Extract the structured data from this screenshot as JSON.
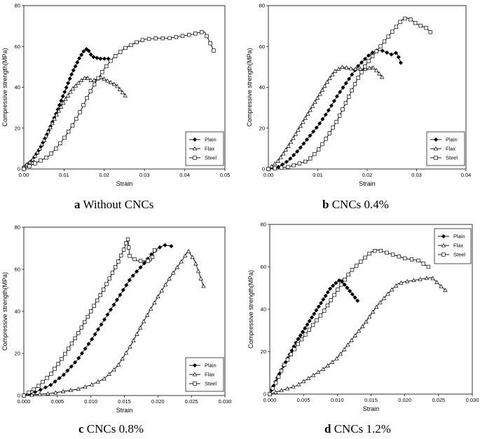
{
  "captions": [
    {
      "letter": "a",
      "text": "Without CNCs"
    },
    {
      "letter": "b",
      "text": "CNCs 0.4%"
    },
    {
      "letter": "c",
      "text": "CNCs 0.8%"
    },
    {
      "letter": "d",
      "text": "CNCs 1.2%"
    }
  ],
  "chart_data": [
    {
      "type": "line",
      "panel": "a",
      "xlabel": "Strain",
      "ylabel": "Compressive strength(MPa)",
      "xlim": [
        0,
        0.05
      ],
      "ylim": [
        0,
        80
      ],
      "xticks": [
        0,
        0.01,
        0.02,
        0.03,
        0.04,
        0.05
      ],
      "xtick_labels": [
        "0.00",
        "0.01",
        "0.02",
        "0.03",
        "0.04",
        "0.05"
      ],
      "yticks": [
        0,
        20,
        40,
        60,
        80
      ],
      "ytick_labels": [
        "0",
        "20",
        "40",
        "60",
        "80"
      ],
      "legend": [
        "Plain",
        "Flax",
        "Steel"
      ],
      "legend_position": "bottom-right",
      "series": [
        {
          "name": "Plain",
          "marker": "diamond",
          "x": [
            0,
            0.002,
            0.004,
            0.006,
            0.008,
            0.01,
            0.012,
            0.014,
            0.015,
            0.0158,
            0.017,
            0.019,
            0.021
          ],
          "y": [
            1,
            4,
            10,
            18,
            27,
            37,
            47,
            55,
            58,
            59,
            55,
            54,
            54
          ]
        },
        {
          "name": "Flax",
          "marker": "triangle",
          "x": [
            0,
            0.002,
            0.004,
            0.006,
            0.008,
            0.01,
            0.012,
            0.014,
            0.0155,
            0.017,
            0.019,
            0.021,
            0.023,
            0.0252
          ],
          "y": [
            1,
            4,
            10,
            18,
            26,
            33,
            39,
            43,
            45,
            43,
            45,
            43,
            41,
            36
          ]
        },
        {
          "name": "Steel",
          "marker": "square",
          "x": [
            0,
            0.002,
            0.004,
            0.006,
            0.008,
            0.01,
            0.012,
            0.014,
            0.016,
            0.018,
            0.02,
            0.022,
            0.025,
            0.028,
            0.03,
            0.033,
            0.036,
            0.039,
            0.042,
            0.044,
            0.045,
            0.046,
            0.0472
          ],
          "y": [
            0,
            2,
            4,
            6,
            10,
            15,
            21,
            28,
            36,
            43,
            49,
            54,
            59,
            62,
            63.5,
            64,
            64,
            65,
            66,
            67,
            67,
            63,
            58
          ]
        }
      ]
    },
    {
      "type": "line",
      "panel": "b",
      "xlabel": "Strain",
      "ylabel": "Compressive strength(MPa)",
      "xlim": [
        0,
        0.04
      ],
      "ylim": [
        0,
        80
      ],
      "xticks": [
        0,
        0.01,
        0.02,
        0.03,
        0.04
      ],
      "xtick_labels": [
        "0.00",
        "0.01",
        "0.02",
        "0.03",
        "0.04"
      ],
      "yticks": [
        0,
        20,
        40,
        60,
        80
      ],
      "ytick_labels": [
        "0",
        "20",
        "40",
        "60",
        "80"
      ],
      "legend": [
        "Plain",
        "Flax",
        "Steel"
      ],
      "legend_position": "bottom-right",
      "series": [
        {
          "name": "Plain",
          "marker": "diamond",
          "x": [
            0,
            0.002,
            0.004,
            0.006,
            0.008,
            0.01,
            0.012,
            0.014,
            0.016,
            0.018,
            0.02,
            0.021,
            0.022,
            0.023,
            0.024,
            0.025,
            0.026,
            0.0268
          ],
          "y": [
            0,
            1,
            4,
            9,
            15,
            21,
            28,
            36,
            43,
            50,
            55,
            57,
            58,
            58,
            57,
            56,
            57,
            52
          ]
        },
        {
          "name": "Flax",
          "marker": "triangle",
          "x": [
            0,
            0.002,
            0.004,
            0.006,
            0.008,
            0.01,
            0.012,
            0.0135,
            0.015,
            0.017,
            0.019,
            0.02,
            0.021,
            0.022,
            0.023
          ],
          "y": [
            0,
            4,
            11,
            19,
            27,
            35,
            43,
            48,
            50,
            49,
            49,
            49,
            50,
            48,
            45
          ]
        },
        {
          "name": "Steel",
          "marker": "square",
          "x": [
            0,
            0.004,
            0.008,
            0.01,
            0.012,
            0.014,
            0.016,
            0.018,
            0.02,
            0.022,
            0.024,
            0.026,
            0.027,
            0.028,
            0.029,
            0.03,
            0.031,
            0.032,
            0.0328
          ],
          "y": [
            0,
            1,
            4,
            9,
            16,
            24,
            34,
            44,
            52,
            58,
            64,
            70,
            73,
            74,
            73,
            71,
            70,
            69,
            67
          ]
        }
      ]
    },
    {
      "type": "line",
      "panel": "c",
      "xlabel": "Strain",
      "ylabel": "Compressive strength(MPa)",
      "xlim": [
        0,
        0.03
      ],
      "ylim": [
        0,
        80
      ],
      "xticks": [
        0,
        0.005,
        0.01,
        0.015,
        0.02,
        0.025,
        0.03
      ],
      "xtick_labels": [
        "0.000",
        "0.005",
        "0.010",
        "0.015",
        "0.020",
        "0.025",
        "0.030"
      ],
      "yticks": [
        0,
        20,
        40,
        60,
        80
      ],
      "ytick_labels": [
        "0",
        "20",
        "40",
        "60",
        "80"
      ],
      "legend": [
        "Plain",
        "Flax",
        "Steel"
      ],
      "legend_position": "bottom-right",
      "series": [
        {
          "name": "Plain",
          "marker": "diamond",
          "x": [
            0,
            0.002,
            0.004,
            0.006,
            0.008,
            0.01,
            0.012,
            0.014,
            0.016,
            0.018,
            0.019,
            0.02,
            0.021,
            0.022
          ],
          "y": [
            0,
            2,
            5,
            10,
            17,
            26,
            36,
            46,
            56,
            63,
            67,
            70,
            71.5,
            71
          ]
        },
        {
          "name": "Flax",
          "marker": "triangle",
          "x": [
            0,
            0.004,
            0.008,
            0.01,
            0.012,
            0.014,
            0.016,
            0.018,
            0.02,
            0.022,
            0.024,
            0.0245,
            0.0255,
            0.0268
          ],
          "y": [
            0,
            1,
            3,
            5,
            8,
            14,
            24,
            36,
            47,
            57,
            66,
            69,
            64,
            52
          ]
        },
        {
          "name": "Steel",
          "marker": "square",
          "x": [
            0,
            0.002,
            0.004,
            0.006,
            0.008,
            0.01,
            0.012,
            0.014,
            0.015,
            0.0155,
            0.0158,
            0.017,
            0.019,
            0.0195
          ],
          "y": [
            0,
            4,
            10,
            19,
            29,
            40,
            51,
            63,
            70,
            75,
            66,
            64,
            64,
            69
          ]
        }
      ]
    },
    {
      "type": "line",
      "panel": "d",
      "xlabel": "Strain",
      "ylabel": "Compressive strength(MPa)",
      "xlim": [
        0,
        0.03
      ],
      "ylim": [
        0,
        80
      ],
      "xticks": [
        0,
        0.005,
        0.01,
        0.015,
        0.02,
        0.025,
        0.03
      ],
      "xtick_labels": [
        "0.000",
        "0.005",
        "0.010",
        "0.015",
        "0.020",
        "0.025",
        "0.030"
      ],
      "yticks": [
        0,
        20,
        40,
        60,
        80
      ],
      "ytick_labels": [
        "0",
        "20",
        "40",
        "60",
        "80"
      ],
      "legend": [
        "Plain",
        "Flax",
        "Steel"
      ],
      "legend_position": "top-right",
      "series": [
        {
          "name": "Plain",
          "marker": "diamond",
          "x": [
            0,
            0.001,
            0.002,
            0.003,
            0.004,
            0.005,
            0.006,
            0.007,
            0.008,
            0.009,
            0.01,
            0.0105,
            0.0115,
            0.013
          ],
          "y": [
            0,
            7,
            13,
            19,
            25,
            30,
            35,
            40,
            45,
            50,
            53,
            54,
            50,
            44
          ]
        },
        {
          "name": "Flax",
          "marker": "triangle",
          "x": [
            0,
            0.002,
            0.004,
            0.006,
            0.008,
            0.01,
            0.012,
            0.014,
            0.016,
            0.018,
            0.019,
            0.02,
            0.022,
            0.024,
            0.026
          ],
          "y": [
            0,
            2,
            4,
            8,
            12,
            17,
            25,
            33,
            42,
            49,
            52,
            53,
            54,
            55,
            49
          ]
        },
        {
          "name": "Steel",
          "marker": "square",
          "x": [
            0,
            0.001,
            0.002,
            0.004,
            0.006,
            0.008,
            0.01,
            0.012,
            0.014,
            0.015,
            0.016,
            0.017,
            0.02,
            0.022,
            0.0235
          ],
          "y": [
            0,
            6,
            13,
            23,
            31,
            39,
            49,
            58,
            64,
            67,
            68,
            67,
            64,
            63,
            60
          ]
        }
      ]
    }
  ]
}
